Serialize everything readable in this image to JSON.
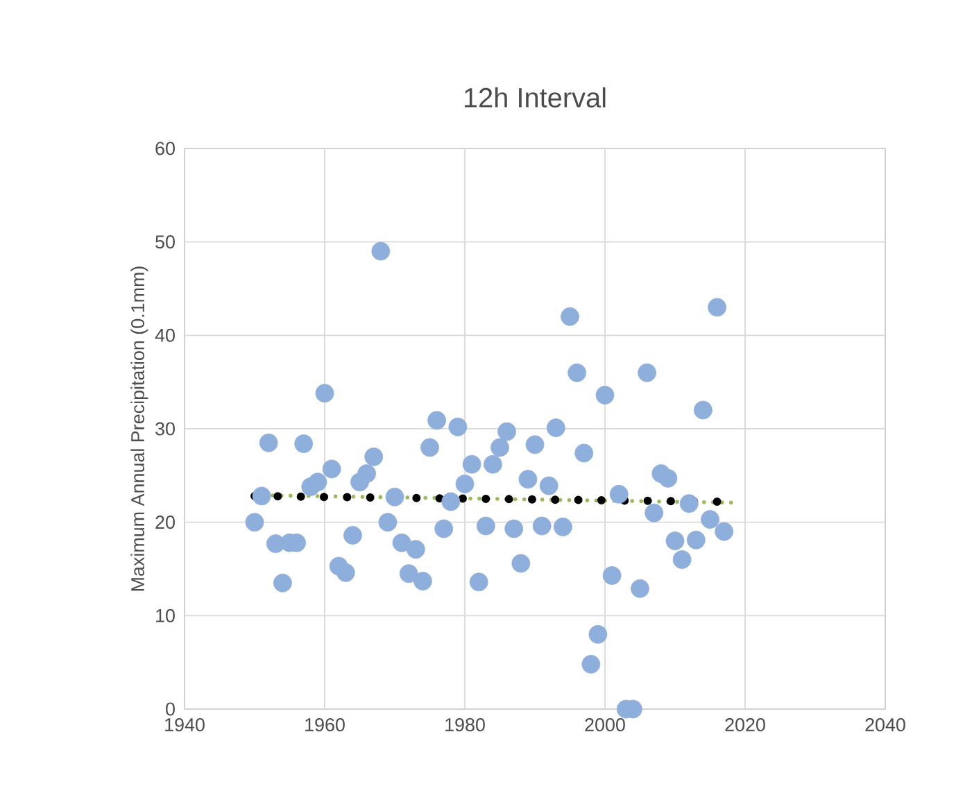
{
  "chart_data": {
    "type": "scatter",
    "title": "12h Interval",
    "ylabel": "Maximum Annual Precipitation (0.1mm)",
    "xlim": [
      1940,
      2040
    ],
    "xticks": [
      1940,
      1960,
      1980,
      2000,
      2020,
      2040
    ],
    "ylim": [
      0,
      60
    ],
    "yticks": [
      0,
      10,
      20,
      30,
      40,
      50,
      60
    ],
    "grid": true,
    "series": [
      {
        "color": "#8eaedb",
        "marker": "circle",
        "x": [
          1950,
          1951,
          1952,
          1953,
          1954,
          1955,
          1956,
          1957,
          1958,
          1959,
          1960,
          1961,
          1962,
          1963,
          1964,
          1965,
          1966,
          1967,
          1968,
          1969,
          1970,
          1971,
          1972,
          1973,
          1974,
          1975,
          1976,
          1977,
          1978,
          1979,
          1980,
          1981,
          1982,
          1983,
          1984,
          1985,
          1986,
          1987,
          1988,
          1989,
          1990,
          1991,
          1992,
          1993,
          1994,
          1995,
          1996,
          1997,
          1998,
          1999,
          2000,
          2001,
          2002,
          2003,
          2004,
          2005,
          2006,
          2007,
          2008,
          2009,
          2010,
          2011,
          2012,
          2013,
          2014,
          2015,
          2016,
          2017
        ],
        "values": [
          20,
          22.8,
          28.5,
          17.7,
          13.5,
          17.8,
          17.8,
          28.4,
          23.8,
          24.3,
          33.8,
          25.7,
          15.3,
          14.6,
          18.6,
          24.3,
          25.2,
          27,
          49,
          20,
          22.7,
          17.8,
          14.5,
          17.1,
          13.7,
          28,
          30.9,
          19.3,
          22.2,
          30.2,
          24.1,
          26.2,
          13.6,
          19.6,
          26.2,
          28,
          29.7,
          19.3,
          15.6,
          24.6,
          28.3,
          19.6,
          23.9,
          30.1,
          19.5,
          42,
          36,
          27.4,
          4.8,
          8,
          33.6,
          14.3,
          23,
          0,
          0,
          12.9,
          36,
          21,
          25.2,
          24.7,
          18,
          16,
          22,
          18.1,
          32,
          20.3,
          43,
          19
        ]
      },
      {
        "type": "line",
        "color": "#9bbb59",
        "line_style": "dotted",
        "marker": "none",
        "x": [
          1950,
          2018
        ],
        "values": [
          22.9,
          22.1
        ]
      },
      {
        "type": "line",
        "color": "#000000",
        "line_style": "dotted",
        "marker": "none",
        "x": [
          1950,
          2016
        ],
        "values": [
          22.8,
          22.2
        ]
      }
    ]
  }
}
